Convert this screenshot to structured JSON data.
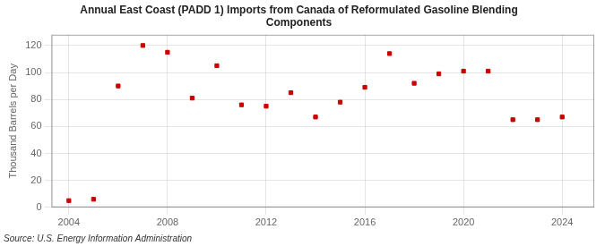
{
  "chart_data": {
    "type": "scatter",
    "title": "Annual East Coast (PADD 1) Imports from Canada of Reformulated Gasoline Blending\nComponents",
    "y_label": "Thousand Barrels per Day",
    "annotations": [
      "Source: U.S. Energy Information Administration"
    ],
    "x": [
      2004,
      2005,
      2006,
      2007,
      2008,
      2009,
      2010,
      2011,
      2012,
      2013,
      2014,
      2015,
      2016,
      2017,
      2018,
      2019,
      2020,
      2021,
      2022,
      2023,
      2024
    ],
    "values": [
      5,
      6,
      90,
      120,
      115,
      81,
      105,
      76,
      75,
      85,
      67,
      78,
      89,
      114,
      92,
      99,
      101,
      101,
      65,
      65,
      67
    ],
    "color": "#cc0000",
    "marker": "square",
    "xlim": [
      2003.3,
      2025.3
    ],
    "xticks": [
      2004,
      2008,
      2012,
      2016,
      2020,
      2024
    ],
    "ylim": [
      0,
      128
    ],
    "yticks": [
      0,
      20,
      40,
      60,
      80,
      100,
      120
    ],
    "grid": true
  }
}
